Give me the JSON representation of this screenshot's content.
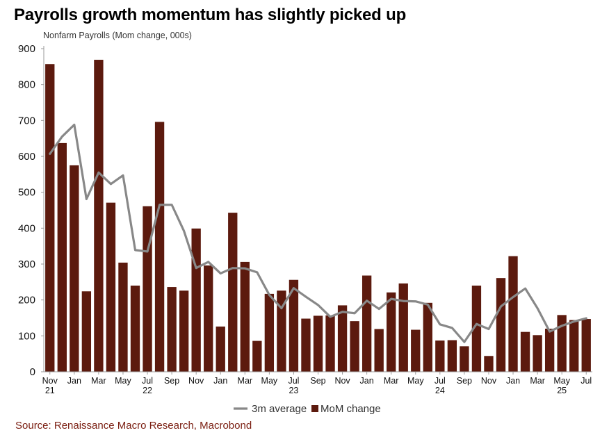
{
  "title": "Payrolls growth momentum has slightly picked up",
  "subtitle": "Nonfarm Payrolls (Mom change, 000s)",
  "source": "Source: Renaissance Macro Research, Macrobond",
  "colors": {
    "bar": "#5c1a0e",
    "line": "#888888",
    "source_text": "#7a1d10"
  },
  "chart_data": {
    "type": "bar",
    "title": "Payrolls growth momentum has slightly picked up",
    "ylabel": "Nonfarm Payrolls (Mom change, 000s)",
    "ylim": [
      0,
      900
    ],
    "yticks": [
      0,
      100,
      200,
      300,
      400,
      500,
      600,
      700,
      800,
      900
    ],
    "grid": false,
    "legend_position": "bottom",
    "categories": [
      "Nov 21",
      "Dec 21",
      "Jan 22",
      "Feb 22",
      "Mar 22",
      "Apr 22",
      "May 22",
      "Jun 22",
      "Jul 22",
      "Aug 22",
      "Sep 22",
      "Oct 22",
      "Nov 22",
      "Dec 22",
      "Jan 23",
      "Feb 23",
      "Mar 23",
      "Apr 23",
      "May 23",
      "Jun 23",
      "Jul 23",
      "Aug 23",
      "Sep 23",
      "Oct 23",
      "Nov 23",
      "Dec 23",
      "Jan 24",
      "Feb 24",
      "Mar 24",
      "Apr 24",
      "May 24",
      "Jun 24",
      "Jul 24",
      "Aug 24",
      "Sep 24",
      "Oct 24",
      "Nov 24",
      "Dec 24",
      "Jan 25",
      "Feb 25",
      "Mar 25",
      "Apr 25",
      "May 25",
      "Jun 25",
      "Jul 25"
    ],
    "x_tick_labels": [
      {
        "index": 0,
        "month": "Nov",
        "year": "21"
      },
      {
        "index": 2,
        "month": "Jan",
        "year": ""
      },
      {
        "index": 4,
        "month": "Mar",
        "year": ""
      },
      {
        "index": 6,
        "month": "May",
        "year": ""
      },
      {
        "index": 8,
        "month": "Jul",
        "year": "22"
      },
      {
        "index": 10,
        "month": "Sep",
        "year": ""
      },
      {
        "index": 12,
        "month": "Nov",
        "year": ""
      },
      {
        "index": 14,
        "month": "Jan",
        "year": ""
      },
      {
        "index": 16,
        "month": "Mar",
        "year": ""
      },
      {
        "index": 18,
        "month": "May",
        "year": ""
      },
      {
        "index": 20,
        "month": "Jul",
        "year": "23"
      },
      {
        "index": 22,
        "month": "Sep",
        "year": ""
      },
      {
        "index": 24,
        "month": "Nov",
        "year": ""
      },
      {
        "index": 26,
        "month": "Jan",
        "year": ""
      },
      {
        "index": 28,
        "month": "Mar",
        "year": ""
      },
      {
        "index": 30,
        "month": "May",
        "year": ""
      },
      {
        "index": 32,
        "month": "Jul",
        "year": "24"
      },
      {
        "index": 34,
        "month": "Sep",
        "year": ""
      },
      {
        "index": 36,
        "month": "Nov",
        "year": ""
      },
      {
        "index": 38,
        "month": "Jan",
        "year": ""
      },
      {
        "index": 40,
        "month": "Mar",
        "year": ""
      },
      {
        "index": 42,
        "month": "May",
        "year": "25"
      },
      {
        "index": 44,
        "month": "Jul",
        "year": ""
      }
    ],
    "series": [
      {
        "name": "3m average",
        "type": "line",
        "values": [
          607,
          655,
          688,
          481,
          555,
          523,
          547,
          339,
          335,
          465,
          465,
          392,
          289,
          306,
          274,
          289,
          288,
          277,
          214,
          177,
          233,
          209,
          186,
          153,
          167,
          163,
          198,
          175,
          203,
          197,
          196,
          187,
          132,
          122,
          83,
          133,
          119,
          182,
          208,
          232,
          177,
          112,
          128,
          140,
          149
        ]
      },
      {
        "name": "MoM change",
        "type": "bar",
        "values": [
          857,
          637,
          575,
          224,
          869,
          471,
          304,
          240,
          461,
          696,
          236,
          226,
          399,
          296,
          126,
          443,
          306,
          86,
          217,
          226,
          256,
          148,
          156,
          157,
          185,
          141,
          268,
          119,
          221,
          246,
          117,
          192,
          87,
          88,
          71,
          240,
          44,
          261,
          322,
          111,
          102,
          120,
          158,
          144,
          147
        ]
      }
    ]
  }
}
